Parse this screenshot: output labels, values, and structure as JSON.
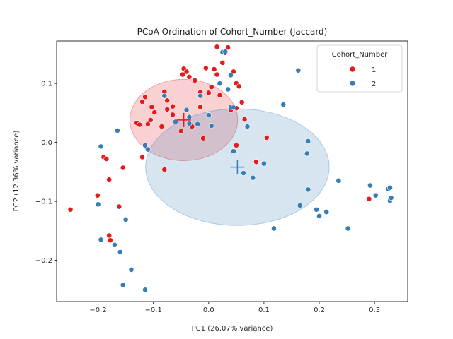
{
  "chart_data": {
    "type": "scatter",
    "title": "PCoA Ordination of Cohort_Number (Jaccard)",
    "xlabel": "PC1 (26.07% variance)",
    "ylabel": "PC2 (12.36% variance)",
    "xlim": [
      -0.275,
      0.36
    ],
    "ylim": [
      -0.27,
      0.172
    ],
    "xticks": [
      -0.2,
      -0.1,
      0.0,
      0.1,
      0.2,
      0.3
    ],
    "xtick_labels": [
      "−0.2",
      "−0.1",
      "0.0",
      "0.1",
      "0.2",
      "0.3"
    ],
    "yticks": [
      -0.2,
      -0.1,
      0.0,
      0.1
    ],
    "ytick_labels": [
      "−0.2",
      "−0.1",
      "0.0",
      "0.1"
    ],
    "grid": false,
    "legend": {
      "title": "Cohort_Number",
      "placement": "top-right"
    },
    "series": [
      {
        "name": "1",
        "color": "#e41a1c",
        "centroid": [
          -0.045,
          0.038
        ],
        "ellipse": {
          "center": [
            -0.045,
            0.038
          ],
          "rx": 0.0975,
          "ry": 0.069
        },
        "points": [
          [
            -0.25,
            -0.114
          ],
          [
            -0.201,
            -0.09
          ],
          [
            -0.19,
            -0.025
          ],
          [
            -0.185,
            -0.028
          ],
          [
            -0.18,
            -0.063
          ],
          [
            -0.18,
            -0.158
          ],
          [
            -0.178,
            -0.166
          ],
          [
            -0.162,
            -0.109
          ],
          [
            -0.155,
            -0.043
          ],
          [
            -0.13,
            0.033
          ],
          [
            -0.125,
            0.03
          ],
          [
            -0.12,
            0.069
          ],
          [
            -0.115,
            0.077
          ],
          [
            -0.11,
            0.031
          ],
          [
            -0.105,
            0.038
          ],
          [
            -0.12,
            -0.025
          ],
          [
            -0.103,
            0.06
          ],
          [
            -0.098,
            0.051
          ],
          [
            -0.085,
            0.027
          ],
          [
            -0.08,
            0.086
          ],
          [
            -0.075,
            0.071
          ],
          [
            -0.075,
            0.056
          ],
          [
            -0.065,
            0.061
          ],
          [
            -0.065,
            0.047
          ],
          [
            -0.08,
            -0.046
          ],
          [
            -0.05,
            0.019
          ],
          [
            -0.047,
            0.115
          ],
          [
            -0.045,
            0.125
          ],
          [
            -0.04,
            0.12
          ],
          [
            -0.035,
            0.111
          ],
          [
            -0.03,
            0.027
          ],
          [
            -0.025,
            0.105
          ],
          [
            -0.015,
            0.06
          ],
          [
            -0.015,
            0.085
          ],
          [
            -0.01,
            0.007
          ],
          [
            -0.005,
            0.126
          ],
          [
            0.0,
            0.084
          ],
          [
            0.005,
            0.094
          ],
          [
            0.015,
            0.162
          ],
          [
            0.01,
            0.124
          ],
          [
            0.015,
            0.115
          ],
          [
            0.02,
            0.08
          ],
          [
            0.025,
            0.135
          ],
          [
            0.03,
            0.152
          ],
          [
            0.035,
            0.161
          ],
          [
            0.04,
            0.055
          ],
          [
            0.045,
            0.12
          ],
          [
            0.05,
            0.058
          ],
          [
            0.05,
            0.1
          ],
          [
            0.055,
            0.095
          ],
          [
            0.06,
            0.068
          ],
          [
            0.065,
            0.039
          ],
          [
            0.05,
            -0.005
          ],
          [
            0.086,
            -0.033
          ],
          [
            0.105,
            0.008
          ],
          [
            0.29,
            -0.096
          ]
        ]
      },
      {
        "name": "2",
        "color": "#377eb8",
        "centroid": [
          0.052,
          -0.042
        ],
        "ellipse": {
          "center": [
            0.052,
            -0.042
          ],
          "rx": 0.166,
          "ry": 0.099
        },
        "points": [
          [
            -0.2,
            -0.105
          ],
          [
            -0.195,
            -0.007
          ],
          [
            -0.195,
            -0.165
          ],
          [
            -0.17,
            -0.174
          ],
          [
            -0.165,
            0.02
          ],
          [
            -0.16,
            -0.186
          ],
          [
            -0.155,
            -0.242
          ],
          [
            -0.15,
            -0.131
          ],
          [
            -0.14,
            -0.216
          ],
          [
            -0.115,
            -0.25
          ],
          [
            -0.115,
            -0.005
          ],
          [
            -0.11,
            -0.012
          ],
          [
            -0.08,
            0.079
          ],
          [
            -0.06,
            0.035
          ],
          [
            -0.04,
            0.055
          ],
          [
            -0.035,
            0.032
          ],
          [
            -0.035,
            0.043
          ],
          [
            -0.02,
            0.031
          ],
          [
            -0.015,
            0.079
          ],
          [
            0.0,
            0.046
          ],
          [
            0.005,
            0.028
          ],
          [
            0.02,
            0.1
          ],
          [
            0.025,
            0.153
          ],
          [
            0.03,
            0.154
          ],
          [
            0.035,
            0.09
          ],
          [
            0.04,
            0.114
          ],
          [
            0.04,
            0.06
          ],
          [
            0.045,
            0.059
          ],
          [
            0.045,
            -0.015
          ],
          [
            0.063,
            -0.052
          ],
          [
            0.07,
            0.027
          ],
          [
            0.08,
            -0.06
          ],
          [
            0.1,
            -0.036
          ],
          [
            0.118,
            -0.146
          ],
          [
            0.135,
            0.064
          ],
          [
            0.162,
            0.122
          ],
          [
            0.165,
            -0.107
          ],
          [
            0.178,
            -0.019
          ],
          [
            0.18,
            0.002
          ],
          [
            0.18,
            -0.08
          ],
          [
            0.195,
            -0.114
          ],
          [
            0.2,
            -0.125
          ],
          [
            0.213,
            -0.118
          ],
          [
            0.235,
            -0.065
          ],
          [
            0.252,
            -0.146
          ],
          [
            0.292,
            -0.073
          ],
          [
            0.302,
            -0.09
          ],
          [
            0.325,
            -0.079
          ],
          [
            0.328,
            -0.099
          ],
          [
            0.328,
            -0.077
          ],
          [
            0.33,
            -0.094
          ]
        ]
      }
    ]
  }
}
